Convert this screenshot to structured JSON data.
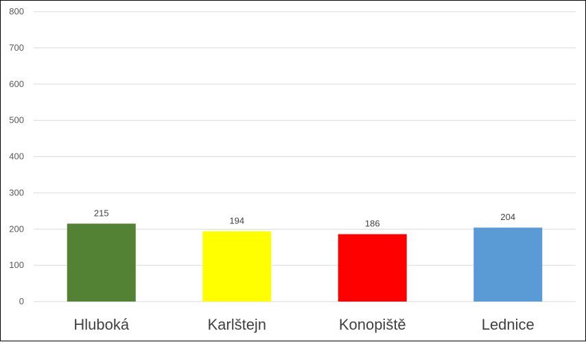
{
  "chart_data": {
    "type": "bar",
    "categories": [
      "Hluboká",
      "Karlštejn",
      "Konopiště",
      "Lednice"
    ],
    "values": [
      215,
      194,
      186,
      204
    ],
    "data_labels": [
      "215",
      "194",
      "186",
      "204"
    ],
    "colors": [
      "#548235",
      "#ffff00",
      "#ff0000",
      "#5b9bd5"
    ],
    "ylim": [
      0,
      800
    ],
    "yticks": [
      "0",
      "100",
      "200",
      "300",
      "400",
      "500",
      "600",
      "700",
      "800"
    ],
    "grid": true,
    "title": "",
    "xlabel": "",
    "ylabel": ""
  }
}
